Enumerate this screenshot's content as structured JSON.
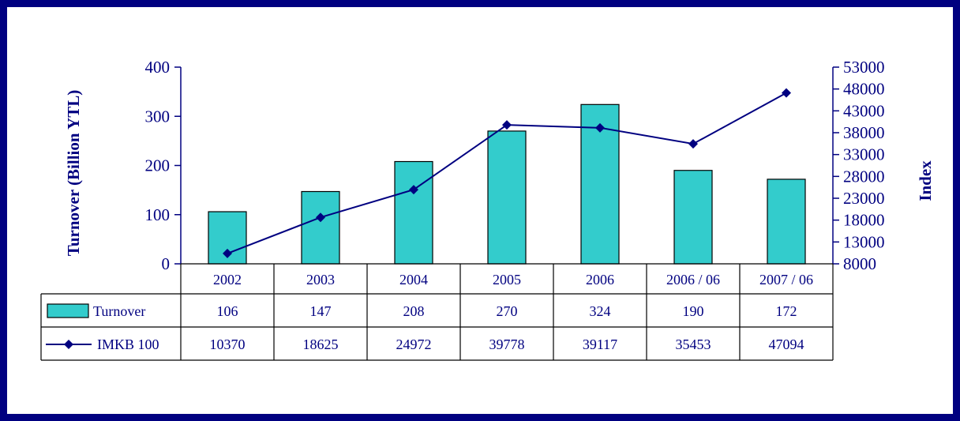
{
  "chart_data": {
    "type": "bar",
    "categories": [
      "2002",
      "2003",
      "2004",
      "2005",
      "2006",
      "2006 / 06",
      "2007 / 06"
    ],
    "ylabel": "Turnover (Billion YTL)",
    "y2label": "Index",
    "ylim": [
      0,
      400
    ],
    "yticks": [
      "0",
      "100",
      "200",
      "300",
      "400"
    ],
    "y2lim": [
      8000,
      53000
    ],
    "y2ticks": [
      "8000",
      "13000",
      "18000",
      "23000",
      "28000",
      "33000",
      "38000",
      "43000",
      "48000",
      "53000"
    ],
    "grid": false,
    "legend": "data-table",
    "data_table": true,
    "series": [
      {
        "name": "Turnover",
        "type": "bar",
        "axis": "left",
        "color": "#33CCCC",
        "values": [
          106,
          147,
          208,
          270,
          324,
          190,
          172
        ]
      },
      {
        "name": "IMKB 100",
        "type": "line",
        "axis": "right",
        "color": "#000080",
        "marker": "diamond",
        "values": [
          10370,
          18625,
          24972,
          39778,
          39117,
          35453,
          47094
        ]
      }
    ]
  }
}
